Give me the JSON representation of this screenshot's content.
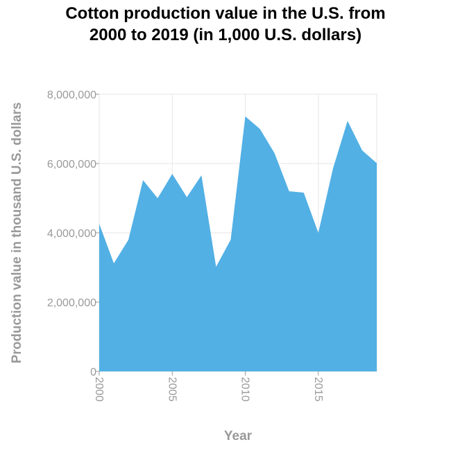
{
  "chart_data": {
    "type": "area",
    "title_line1": "Cotton production value in the U.S. from",
    "title_line2": "2000 to 2019 (in 1,000 U.S. dollars)",
    "xlabel": "Year",
    "ylabel": "Production value in thousand U.S. dollars",
    "x": [
      2000,
      2001,
      2002,
      2003,
      2004,
      2005,
      2006,
      2007,
      2008,
      2009,
      2010,
      2011,
      2012,
      2013,
      2014,
      2015,
      2016,
      2017,
      2018,
      2019
    ],
    "values": [
      4260000,
      3120000,
      3800000,
      5520000,
      5000000,
      5700000,
      5030000,
      5660000,
      3020000,
      3800000,
      7360000,
      7000000,
      6300000,
      5200000,
      5160000,
      4000000,
      5850000,
      7230000,
      6380000,
      6010000
    ],
    "xlim": [
      2000,
      2019
    ],
    "ylim": [
      0,
      8000000
    ],
    "x_ticks": [
      2000,
      2005,
      2010,
      2015
    ],
    "y_ticks": [
      0,
      2000000,
      4000000,
      6000000,
      8000000
    ],
    "y_tick_labels": [
      "0",
      "2,000,000",
      "4,000,000",
      "6,000,000",
      "8,000,000"
    ],
    "grid": true,
    "colors": {
      "area": "#52b0e5",
      "grid": "#e6e6e6",
      "tick": "#999999"
    }
  }
}
